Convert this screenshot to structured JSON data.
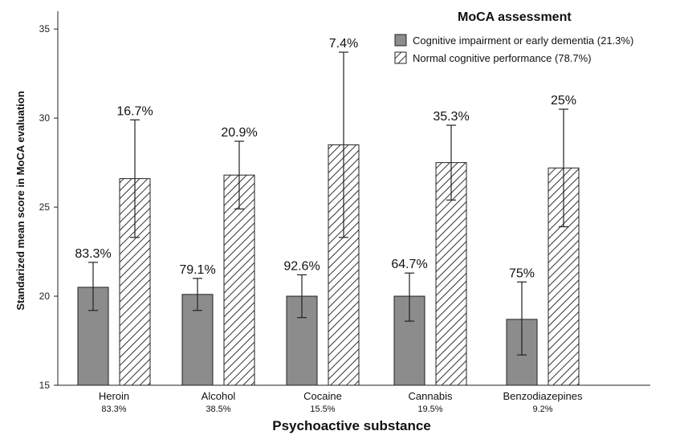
{
  "chart_data": {
    "type": "bar",
    "ylabel": "Standarized mean score in MoCA evaluation",
    "xlabel": "Psychoactive substance",
    "ylim": [
      15,
      36
    ],
    "yticks": [
      15,
      20,
      25,
      30,
      35
    ],
    "legend_title": "MoCA assessment",
    "legend_position": "top-right",
    "categories": [
      "Heroin",
      "Alcohol",
      "Cocaine",
      "Cannabis",
      "Benzodiazepines"
    ],
    "category_shares": [
      "83.3%",
      "38.5%",
      "15.5%",
      "19.5%",
      "9.2%"
    ],
    "series": [
      {
        "name": "Cognitive impairment or early dementia (21.3%)",
        "fill": "solid",
        "color": "#8c8c8c",
        "values": [
          20.5,
          20.1,
          20.0,
          20.0,
          18.7
        ],
        "error_low": [
          19.2,
          19.2,
          18.8,
          18.6,
          16.7
        ],
        "error_high": [
          21.9,
          21.0,
          21.2,
          21.3,
          20.8
        ],
        "labels": [
          "83.3%",
          "79.1%",
          "92.6%",
          "64.7%",
          "75%"
        ]
      },
      {
        "name": "Normal cognitive performance (78.7%)",
        "fill": "hatched",
        "color": "#ffffff",
        "values": [
          26.6,
          26.8,
          28.5,
          27.5,
          27.2
        ],
        "error_low": [
          23.3,
          24.9,
          23.3,
          25.4,
          23.9
        ],
        "error_high": [
          29.9,
          28.7,
          33.7,
          29.6,
          30.5
        ],
        "labels": [
          "16.7%",
          "20.9%",
          "7.4%",
          "35.3%",
          "25%"
        ]
      }
    ],
    "grid": false
  }
}
